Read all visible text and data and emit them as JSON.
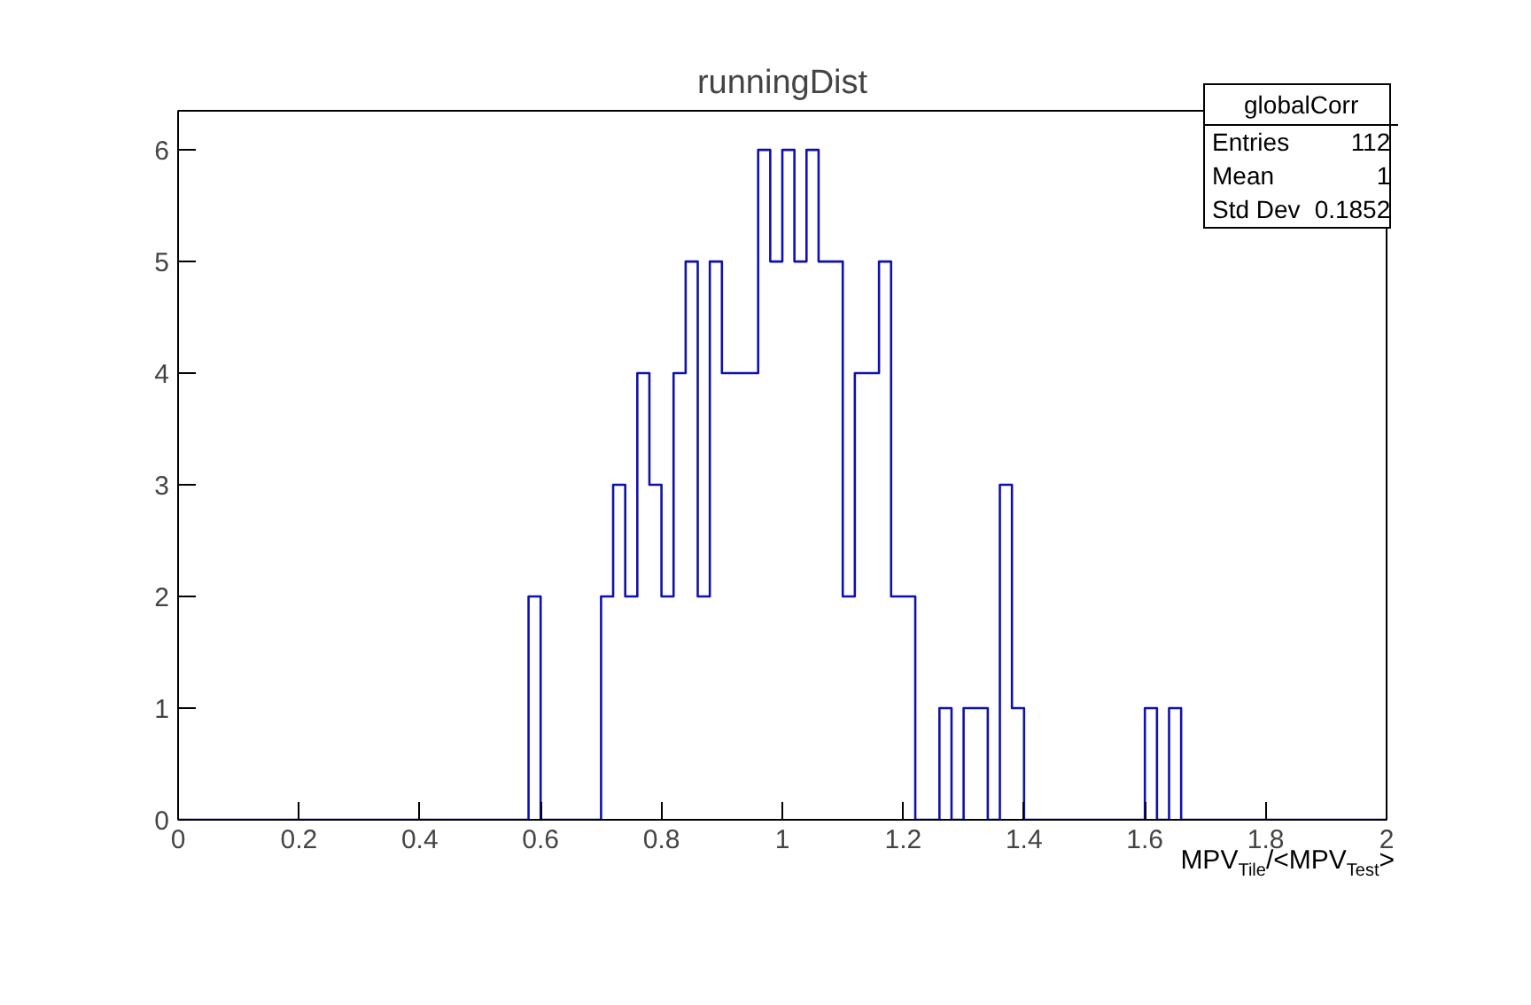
{
  "chart_data": {
    "type": "histogram",
    "title": "runningDist",
    "xlabel": "MPV$_{Tile}$/<MPV$_{Test}$>",
    "bins": [
      0,
      0.02,
      0.04,
      0.06,
      0.08,
      0.1,
      0.12,
      0.14,
      0.16,
      0.18,
      0.2,
      0.22,
      0.24,
      0.26,
      0.28,
      0.3,
      0.32,
      0.34,
      0.36,
      0.38,
      0.4,
      0.42,
      0.44,
      0.46,
      0.48,
      0.5,
      0.52,
      0.54,
      0.56,
      0.58,
      0.6,
      0.62,
      0.64,
      0.66,
      0.68,
      0.7,
      0.72,
      0.74,
      0.76,
      0.78,
      0.8,
      0.82,
      0.84,
      0.86,
      0.88,
      0.9,
      0.92,
      0.94,
      0.96,
      0.98,
      1,
      1.02,
      1.04,
      1.06,
      1.08,
      1.1,
      1.12,
      1.14,
      1.16,
      1.18,
      1.2,
      1.22,
      1.24,
      1.26,
      1.28,
      1.3,
      1.32,
      1.34,
      1.36,
      1.38,
      1.4,
      1.42,
      1.44,
      1.46,
      1.48,
      1.5,
      1.52,
      1.54,
      1.56,
      1.58,
      1.6,
      1.62,
      1.64,
      1.66,
      1.68,
      1.7,
      1.72,
      1.74,
      1.76,
      1.78,
      1.8,
      1.82,
      1.84,
      1.86,
      1.88,
      1.9,
      1.92,
      1.94,
      1.96,
      1.98,
      2
    ],
    "values": [
      0,
      0,
      0,
      0,
      0,
      0,
      0,
      0,
      0,
      0,
      0,
      0,
      0,
      0,
      0,
      0,
      0,
      0,
      0,
      0,
      0,
      0,
      0,
      0,
      0,
      0,
      0,
      0,
      0,
      2,
      0,
      0,
      0,
      0,
      0,
      2,
      3,
      2,
      4,
      3,
      2,
      4,
      5,
      2,
      5,
      4,
      4,
      4,
      6,
      5,
      6,
      5,
      6,
      5,
      5,
      2,
      4,
      4,
      5,
      2,
      2,
      0,
      0,
      1,
      0,
      1,
      1,
      0,
      3,
      1,
      0,
      0,
      0,
      0,
      0,
      0,
      0,
      0,
      0,
      0,
      1,
      0,
      1,
      0,
      0,
      0,
      0,
      0,
      0,
      0,
      0,
      0,
      0,
      0,
      0,
      0,
      0,
      0,
      0,
      0
    ],
    "color": "#1010b0",
    "xlim": [
      0,
      2
    ],
    "ylim": [
      0,
      6.35
    ],
    "xticks": [
      0,
      0.2,
      0.4,
      0.6,
      0.8,
      1,
      1.2,
      1.4,
      1.6,
      1.8,
      2
    ],
    "yticks": [
      0,
      1,
      2,
      3,
      4,
      5,
      6
    ],
    "grid": false,
    "annotations": [
      "globalCorr",
      "Entries",
      "112",
      "Mean",
      "1",
      "Std Dev",
      "0.1852"
    ]
  }
}
